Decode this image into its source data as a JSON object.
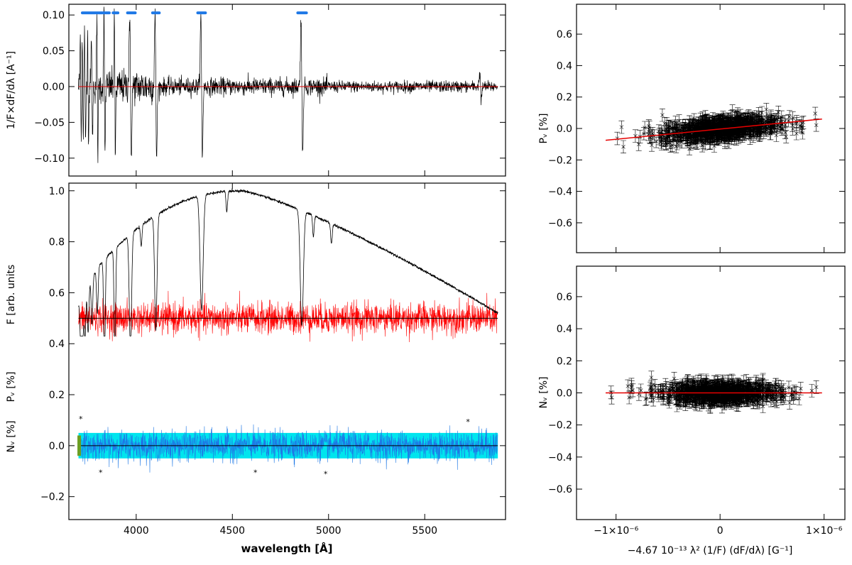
{
  "colors": {
    "spectrum": "#000000",
    "pv": "#ff0000",
    "nv": "#1e78e6",
    "nv_band": "#00e5ee",
    "marker": "#6b9e23",
    "fit": "#e60000",
    "mask": "#1e78e6"
  },
  "chart_data": [
    {
      "id": "derivative",
      "type": "line",
      "xlim": [
        3650,
        5920
      ],
      "ylim": [
        -0.125,
        0.115
      ],
      "x_ticks": [
        4000,
        4500,
        5000,
        5500
      ],
      "y_ticks": [
        -0.1,
        -0.05,
        0.0,
        0.05,
        0.1
      ],
      "y_tick_labels": [
        "−0.10",
        "−0.05",
        "0.00",
        "0.05",
        "0.10"
      ],
      "ylabel": "1/F×dF/dλ [A⁻¹]",
      "continuum_wavelength_range": [
        3700,
        5880
      ],
      "line_wavelengths": [
        3712,
        3722,
        3734,
        3750,
        3770,
        3798,
        3835,
        3889,
        3970,
        4102,
        4340,
        4861,
        5790
      ],
      "mask_segments": [
        [
          3720,
          3860
        ],
        [
          3880,
          3905
        ],
        [
          3955,
          3995
        ],
        [
          4085,
          4120
        ],
        [
          4320,
          4360
        ],
        [
          4840,
          4885
        ]
      ],
      "mask_y": 0.103
    },
    {
      "id": "spectra",
      "type": "line",
      "xlim": [
        3650,
        5920
      ],
      "ylim": [
        -0.29,
        1.03
      ],
      "x_ticks": [
        4000,
        4500,
        5000,
        5500
      ],
      "x_tick_labels": [
        "4000",
        "4500",
        "5000",
        "5500"
      ],
      "y_ticks": [
        -0.2,
        0.0,
        0.2,
        0.4,
        0.6,
        0.8,
        1.0
      ],
      "y_tick_labels": [
        "−0.2",
        "0.0",
        "0.2",
        "0.4",
        "0.6",
        "0.8",
        "1.0"
      ],
      "xlabel": "wavelength [Å]",
      "ylabels": [
        "F [arb. units",
        "Pᵥ [%]",
        "Nᵥ [%]"
      ],
      "wavelength_range": [
        3700,
        5880
      ],
      "flux_peak": 1.0,
      "flux_peak_wavelength": 4550,
      "flux_end": 0.52,
      "pv_offset": 0.5,
      "nv_offset": 0.0,
      "nv_band_halfwidth": 0.05,
      "outlier_markers": [
        {
          "x": 3712,
          "y": 0.105
        },
        {
          "x": 3815,
          "y": -0.105
        },
        {
          "x": 4620,
          "y": -0.105
        },
        {
          "x": 4985,
          "y": -0.11
        },
        {
          "x": 5725,
          "y": 0.095
        }
      ]
    },
    {
      "id": "pv_regression",
      "type": "scatter",
      "xlim": [
        -1.38e-06,
        1.2e-06
      ],
      "ylim": [
        -0.79,
        0.79
      ],
      "y_ticks": [
        -0.6,
        -0.4,
        -0.2,
        0.0,
        0.2,
        0.4,
        0.6
      ],
      "y_tick_labels": [
        "−0.6",
        "−0.4",
        "−0.2",
        "0.0",
        "0.2",
        "0.4",
        "0.6"
      ],
      "ylabel": "Pᵥ [%]",
      "fit_line": {
        "x": [
          -1.1e-06,
          9.8e-07
        ],
        "y": [
          -0.075,
          0.06
        ]
      },
      "error_bar": 0.04,
      "point_count": 900
    },
    {
      "id": "nv_regression",
      "type": "scatter",
      "xlim": [
        -1.38e-06,
        1.2e-06
      ],
      "ylim": [
        -0.79,
        0.79
      ],
      "x_ticks": [
        -1e-06,
        0,
        1e-06
      ],
      "x_tick_labels": [
        "−1×10⁻⁶",
        "0",
        "1×10⁻⁶"
      ],
      "y_ticks": [
        -0.6,
        -0.4,
        -0.2,
        0.0,
        0.2,
        0.4,
        0.6
      ],
      "y_tick_labels": [
        "−0.6",
        "−0.4",
        "−0.2",
        "0.0",
        "0.2",
        "0.4",
        "0.6"
      ],
      "ylabel": "Nᵥ [%]",
      "xlabel": "−4.67 10⁻¹³ λ² (1/F) (dF/dλ) [G⁻¹]",
      "fit_line": {
        "x": [
          -1.1e-06,
          9.8e-07
        ],
        "y": [
          0.0,
          0.0
        ]
      },
      "error_bar": 0.04,
      "point_count": 900
    }
  ]
}
